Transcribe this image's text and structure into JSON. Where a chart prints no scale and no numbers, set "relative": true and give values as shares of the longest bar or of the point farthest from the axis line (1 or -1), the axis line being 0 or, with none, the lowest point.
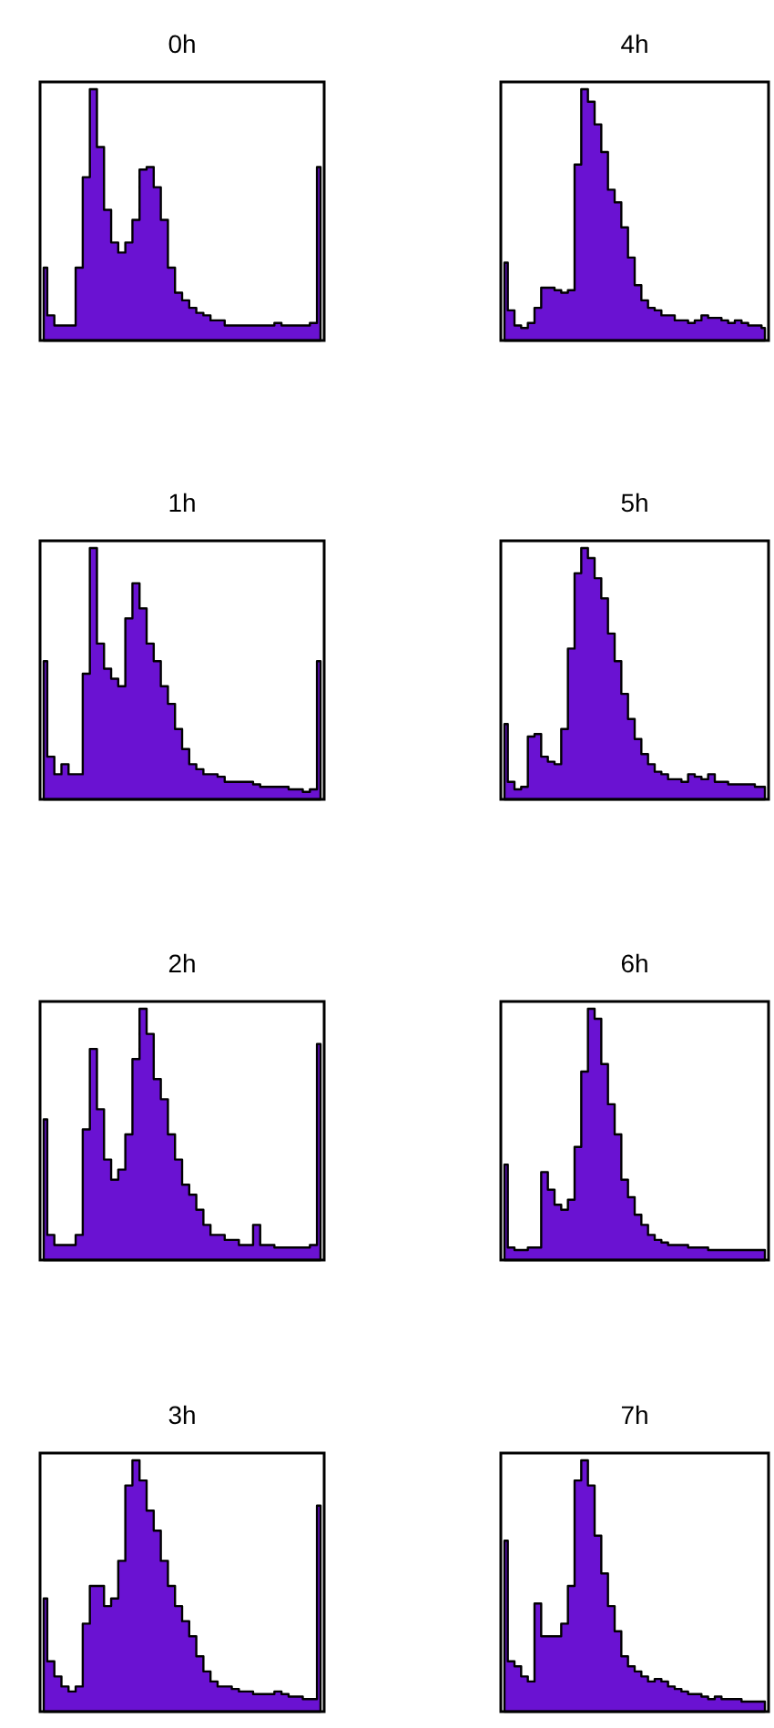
{
  "chart_data": [
    {
      "type": "area",
      "title": "0h",
      "relative": true,
      "color": "#6a12d2",
      "categories": [
        null,
        null,
        null,
        null,
        null,
        null,
        null,
        null,
        null,
        null,
        null,
        null,
        null,
        null,
        null,
        null,
        null,
        null,
        null,
        null,
        null,
        null,
        null,
        null,
        null,
        null,
        null,
        null,
        null,
        null,
        null,
        null,
        null,
        null,
        null,
        null,
        null,
        null,
        null,
        null
      ],
      "values": [
        0.29,
        0.1,
        0.06,
        0.06,
        0.06,
        0.29,
        0.65,
        1,
        0.77,
        0.52,
        0.39,
        0.35,
        0.39,
        0.48,
        0.68,
        0.69,
        0.61,
        0.48,
        0.29,
        0.19,
        0.16,
        0.13,
        0.11,
        0.1,
        0.08,
        0.08,
        0.06,
        0.06,
        0.06,
        0.06,
        0.06,
        0.06,
        0.06,
        0.07,
        0.06,
        0.06,
        0.06,
        0.06,
        0.07,
        0.69
      ]
    },
    {
      "type": "area",
      "title": "4h",
      "relative": true,
      "color": "#6a12d2",
      "categories": [
        null,
        null,
        null,
        null,
        null,
        null,
        null,
        null,
        null,
        null,
        null,
        null,
        null,
        null,
        null,
        null,
        null,
        null,
        null,
        null,
        null,
        null,
        null,
        null,
        null,
        null,
        null,
        null,
        null,
        null,
        null,
        null,
        null,
        null,
        null,
        null,
        null,
        null,
        null,
        null
      ],
      "values": [
        0.31,
        0.12,
        0.06,
        0.05,
        0.07,
        0.13,
        0.21,
        0.21,
        0.2,
        0.19,
        0.2,
        0.7,
        1,
        0.95,
        0.86,
        0.75,
        0.6,
        0.55,
        0.45,
        0.33,
        0.22,
        0.16,
        0.13,
        0.12,
        0.1,
        0.1,
        0.08,
        0.08,
        0.07,
        0.08,
        0.1,
        0.09,
        0.09,
        0.08,
        0.07,
        0.08,
        0.07,
        0.06,
        0.06,
        0.05
      ]
    },
    {
      "type": "area",
      "title": "1h",
      "relative": true,
      "color": "#6a12d2",
      "categories": [
        null,
        null,
        null,
        null,
        null,
        null,
        null,
        null,
        null,
        null,
        null,
        null,
        null,
        null,
        null,
        null,
        null,
        null,
        null,
        null,
        null,
        null,
        null,
        null,
        null,
        null,
        null,
        null,
        null,
        null,
        null,
        null,
        null,
        null,
        null,
        null,
        null,
        null,
        null,
        null
      ],
      "values": [
        0.55,
        0.17,
        0.1,
        0.14,
        0.1,
        0.1,
        0.5,
        1,
        0.62,
        0.52,
        0.48,
        0.45,
        0.72,
        0.86,
        0.76,
        0.62,
        0.55,
        0.45,
        0.38,
        0.28,
        0.2,
        0.14,
        0.12,
        0.1,
        0.1,
        0.09,
        0.07,
        0.07,
        0.07,
        0.07,
        0.06,
        0.05,
        0.05,
        0.05,
        0.05,
        0.04,
        0.04,
        0.03,
        0.04,
        0.55
      ]
    },
    {
      "type": "area",
      "title": "5h",
      "relative": true,
      "color": "#6a12d2",
      "categories": [
        null,
        null,
        null,
        null,
        null,
        null,
        null,
        null,
        null,
        null,
        null,
        null,
        null,
        null,
        null,
        null,
        null,
        null,
        null,
        null,
        null,
        null,
        null,
        null,
        null,
        null,
        null,
        null,
        null,
        null,
        null,
        null,
        null,
        null,
        null,
        null,
        null,
        null,
        null,
        null
      ],
      "values": [
        0.3,
        0.07,
        0.04,
        0.05,
        0.25,
        0.26,
        0.17,
        0.15,
        0.14,
        0.28,
        0.6,
        0.9,
        1,
        0.96,
        0.88,
        0.8,
        0.66,
        0.55,
        0.42,
        0.32,
        0.24,
        0.18,
        0.14,
        0.11,
        0.1,
        0.08,
        0.08,
        0.07,
        0.1,
        0.09,
        0.08,
        0.1,
        0.07,
        0.07,
        0.06,
        0.06,
        0.06,
        0.06,
        0.05,
        0.05
      ]
    },
    {
      "type": "area",
      "title": "2h",
      "relative": true,
      "color": "#6a12d2",
      "categories": [
        null,
        null,
        null,
        null,
        null,
        null,
        null,
        null,
        null,
        null,
        null,
        null,
        null,
        null,
        null,
        null,
        null,
        null,
        null,
        null,
        null,
        null,
        null,
        null,
        null,
        null,
        null,
        null,
        null,
        null,
        null,
        null,
        null,
        null,
        null,
        null,
        null,
        null,
        null,
        null
      ],
      "values": [
        0.56,
        0.1,
        0.06,
        0.06,
        0.06,
        0.1,
        0.52,
        0.84,
        0.6,
        0.4,
        0.32,
        0.36,
        0.5,
        0.8,
        1,
        0.9,
        0.72,
        0.64,
        0.5,
        0.4,
        0.3,
        0.26,
        0.2,
        0.14,
        0.1,
        0.1,
        0.08,
        0.08,
        0.06,
        0.06,
        0.14,
        0.06,
        0.06,
        0.05,
        0.05,
        0.05,
        0.05,
        0.05,
        0.06,
        0.86
      ]
    },
    {
      "type": "area",
      "title": "6h",
      "relative": true,
      "color": "#6a12d2",
      "categories": [
        null,
        null,
        null,
        null,
        null,
        null,
        null,
        null,
        null,
        null,
        null,
        null,
        null,
        null,
        null,
        null,
        null,
        null,
        null,
        null,
        null,
        null,
        null,
        null,
        null,
        null,
        null,
        null,
        null,
        null,
        null,
        null,
        null,
        null,
        null,
        null,
        null,
        null,
        null,
        null
      ],
      "values": [
        0.38,
        0.05,
        0.04,
        0.04,
        0.05,
        0.05,
        0.35,
        0.28,
        0.22,
        0.2,
        0.24,
        0.45,
        0.75,
        1,
        0.96,
        0.78,
        0.62,
        0.5,
        0.32,
        0.25,
        0.18,
        0.14,
        0.1,
        0.08,
        0.07,
        0.06,
        0.06,
        0.06,
        0.05,
        0.05,
        0.05,
        0.04,
        0.04,
        0.04,
        0.04,
        0.04,
        0.04,
        0.04,
        0.04,
        0.04
      ]
    },
    {
      "type": "area",
      "title": "3h",
      "relative": true,
      "color": "#6a12d2",
      "categories": [
        null,
        null,
        null,
        null,
        null,
        null,
        null,
        null,
        null,
        null,
        null,
        null,
        null,
        null,
        null,
        null,
        null,
        null,
        null,
        null,
        null,
        null,
        null,
        null,
        null,
        null,
        null,
        null,
        null,
        null,
        null,
        null,
        null,
        null,
        null,
        null,
        null,
        null,
        null,
        null
      ],
      "values": [
        0.45,
        0.2,
        0.14,
        0.1,
        0.08,
        0.1,
        0.35,
        0.5,
        0.5,
        0.42,
        0.45,
        0.6,
        0.9,
        1,
        0.92,
        0.8,
        0.72,
        0.6,
        0.5,
        0.42,
        0.36,
        0.3,
        0.22,
        0.16,
        0.12,
        0.1,
        0.1,
        0.09,
        0.08,
        0.08,
        0.07,
        0.07,
        0.07,
        0.08,
        0.07,
        0.06,
        0.06,
        0.05,
        0.05,
        0.82
      ]
    },
    {
      "type": "area",
      "title": "7h",
      "relative": true,
      "color": "#6a12d2",
      "categories": [
        null,
        null,
        null,
        null,
        null,
        null,
        null,
        null,
        null,
        null,
        null,
        null,
        null,
        null,
        null,
        null,
        null,
        null,
        null,
        null,
        null,
        null,
        null,
        null,
        null,
        null,
        null,
        null,
        null,
        null,
        null,
        null,
        null,
        null,
        null,
        null,
        null,
        null,
        null,
        null
      ],
      "values": [
        0.68,
        0.2,
        0.18,
        0.14,
        0.12,
        0.43,
        0.3,
        0.3,
        0.3,
        0.35,
        0.5,
        0.92,
        1,
        0.9,
        0.7,
        0.55,
        0.42,
        0.32,
        0.22,
        0.18,
        0.16,
        0.14,
        0.12,
        0.13,
        0.12,
        0.1,
        0.09,
        0.08,
        0.07,
        0.07,
        0.06,
        0.05,
        0.06,
        0.05,
        0.05,
        0.05,
        0.04,
        0.04,
        0.04,
        0.04
      ]
    }
  ]
}
